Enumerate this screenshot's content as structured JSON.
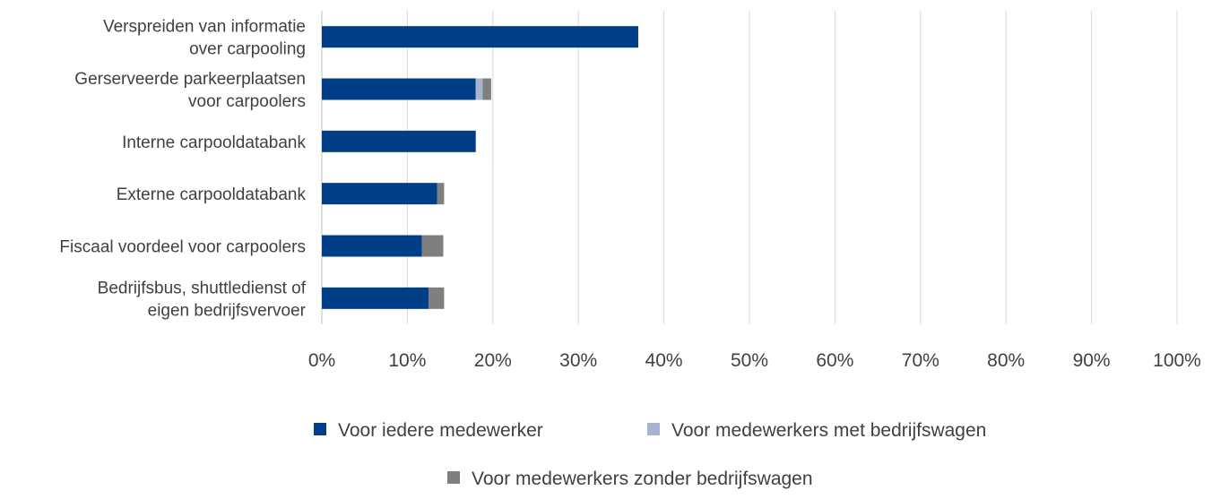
{
  "chart_data": {
    "type": "bar",
    "orientation": "horizontal",
    "stacked": true,
    "categories": [
      [
        "Verspreiden van informatie",
        "over carpooling"
      ],
      [
        "Gerserveerde parkeerplaatsen",
        "voor carpoolers"
      ],
      [
        "Interne carpooldatabank"
      ],
      [
        "Externe carpooldatabank"
      ],
      [
        "Fiscaal voordeel voor carpoolers"
      ],
      [
        "Bedrijfsbus, shuttledienst of",
        "eigen bedrijfsvervoer"
      ]
    ],
    "series": [
      {
        "name": "Voor iedere medewerker",
        "color": "#003f87",
        "values": [
          37,
          18,
          18,
          13.5,
          11.7,
          12.5
        ]
      },
      {
        "name": "Voor medewerkers met bedrijfswagen",
        "color": "#a6b4cf",
        "values": [
          0,
          0.8,
          0,
          0,
          0,
          0
        ]
      },
      {
        "name": "Voor medewerkers zonder bedrijfswagen",
        "color": "#7f7f7f",
        "values": [
          0,
          1,
          0,
          0.8,
          2.5,
          1.8
        ]
      }
    ],
    "xlim": [
      0,
      100
    ],
    "xticks": [
      "0%",
      "10%",
      "20%",
      "30%",
      "40%",
      "50%",
      "60%",
      "70%",
      "80%",
      "90%",
      "100%"
    ],
    "gridlines": "vertical",
    "legend_position": "bottom"
  }
}
